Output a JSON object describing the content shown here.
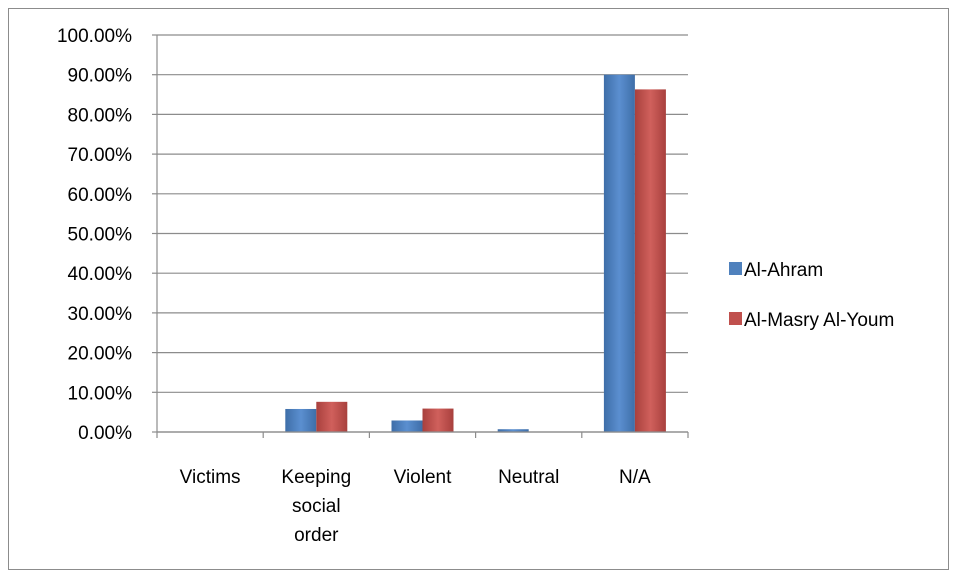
{
  "chart_data": {
    "type": "bar",
    "title": "",
    "xlabel": "",
    "ylabel": "",
    "categories": [
      [
        "Victims"
      ],
      [
        "Keeping",
        "social",
        "order"
      ],
      [
        "Violent"
      ],
      [
        "Neutral"
      ],
      [
        "N/A"
      ]
    ],
    "series": [
      {
        "name": "Al-Ahram",
        "color": "#4F81BD",
        "values": [
          0,
          5.8,
          2.9,
          0.7,
          90.0
        ]
      },
      {
        "name": "Al-Masry Al-Youm",
        "color": "#C0504D",
        "values": [
          0,
          7.6,
          5.9,
          0,
          86.3
        ]
      }
    ],
    "ylim": [
      0,
      100
    ],
    "yticks": [
      0,
      10,
      20,
      30,
      40,
      50,
      60,
      70,
      80,
      90,
      100
    ],
    "ytick_format": "0.00%",
    "grid": true,
    "legend_position": "right"
  }
}
